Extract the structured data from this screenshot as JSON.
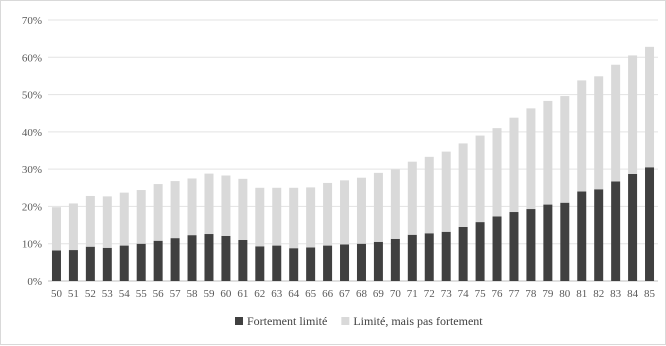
{
  "chart_data": {
    "type": "bar",
    "stacked": true,
    "categories": [
      "50",
      "51",
      "52",
      "53",
      "54",
      "55",
      "56",
      "57",
      "58",
      "59",
      "60",
      "61",
      "62",
      "63",
      "64",
      "65",
      "66",
      "67",
      "68",
      "69",
      "70",
      "71",
      "72",
      "73",
      "74",
      "75",
      "76",
      "77",
      "78",
      "79",
      "80",
      "81",
      "82",
      "83",
      "84",
      "85"
    ],
    "series": [
      {
        "name": "Fortement limité",
        "color": "#404040",
        "values": [
          8.2,
          8.3,
          9.2,
          8.9,
          9.5,
          10.0,
          10.8,
          11.5,
          12.3,
          12.6,
          12.1,
          11.0,
          9.3,
          9.5,
          8.8,
          9.0,
          9.5,
          9.8,
          10.0,
          10.5,
          11.3,
          12.4,
          12.8,
          13.2,
          14.5,
          15.8,
          17.3,
          18.5,
          19.3,
          20.5,
          21.0,
          24.0,
          24.6,
          26.7,
          28.7,
          30.5
        ]
      },
      {
        "name": "Limité, mais pas fortement",
        "color": "#d9d9d9",
        "values": [
          11.6,
          12.5,
          13.6,
          13.8,
          14.2,
          14.4,
          15.2,
          15.3,
          15.2,
          16.2,
          16.2,
          16.4,
          15.7,
          15.5,
          16.2,
          16.1,
          16.8,
          17.2,
          17.7,
          18.5,
          18.6,
          19.6,
          20.5,
          21.5,
          22.4,
          23.2,
          23.7,
          25.3,
          27.0,
          27.8,
          28.6,
          29.8,
          30.3,
          31.3,
          31.8,
          32.3
        ]
      }
    ],
    "ylim": [
      0,
      70
    ],
    "yticks": [
      "0%",
      "10%",
      "20%",
      "30%",
      "40%",
      "50%",
      "60%",
      "70%"
    ],
    "grid": true,
    "legend": "bottom-center",
    "title": "",
    "xlabel": "",
    "ylabel": ""
  }
}
